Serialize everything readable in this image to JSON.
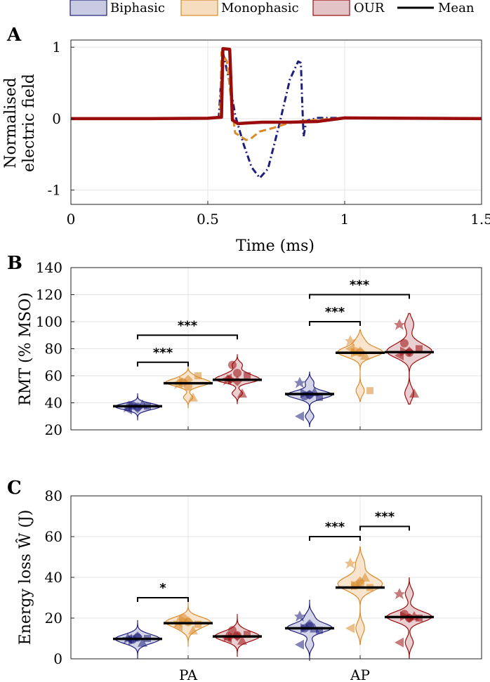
{
  "legend": {
    "entries": [
      {
        "label": "Biphasic",
        "color": "#1f1f7a"
      },
      {
        "label": "Monophasic",
        "color": "#d98b2b"
      },
      {
        "label": "OUR",
        "color": "#9b0d0d"
      },
      {
        "label": "Mean",
        "color": "#000000"
      }
    ]
  },
  "colors": {
    "biphasic": "#1f1f7a",
    "monophasic": "#d98b2b",
    "our": "#9b0d0d",
    "mean": "#000000"
  },
  "chart_data": [
    {
      "panel": "A",
      "type": "line",
      "xlabel": "Time (ms)",
      "ylabel_lines": [
        "Normalised",
        "electric field"
      ],
      "xlim": [
        0,
        1.5
      ],
      "ylim": [
        -1.2,
        1.1
      ],
      "xticks": [
        0,
        0.5,
        1,
        1.5
      ],
      "xtick_labels": [
        "0",
        "0.5",
        "1",
        "1.5"
      ],
      "yticks": [
        -1,
        0,
        1
      ],
      "ytick_labels": [
        "-1",
        "0",
        "1"
      ],
      "series": [
        {
          "name": "Biphasic",
          "x": [
            0,
            0.3,
            0.5,
            0.54,
            0.555,
            0.58,
            0.6,
            0.63,
            0.66,
            0.69,
            0.72,
            0.76,
            0.8,
            0.83,
            0.84,
            0.845,
            0.85,
            0.86,
            0.9,
            1.0,
            1.5
          ],
          "y": [
            0,
            0,
            0.005,
            0.01,
            0.93,
            0.5,
            0.05,
            -0.35,
            -0.68,
            -0.83,
            -0.7,
            -0.1,
            0.55,
            0.8,
            0.78,
            0.2,
            -0.25,
            -0.03,
            0.01,
            0.01,
            0.0
          ]
        },
        {
          "name": "Monophasic",
          "x": [
            0,
            0.3,
            0.5,
            0.545,
            0.55,
            0.57,
            0.59,
            0.6,
            0.62,
            0.64,
            0.66,
            0.69,
            0.74,
            0.78,
            0.8,
            0.85,
            1.0,
            1.5
          ],
          "y": [
            0,
            0,
            0.005,
            0.01,
            0.93,
            0.8,
            0.1,
            -0.2,
            -0.25,
            -0.3,
            -0.27,
            -0.18,
            -0.13,
            -0.08,
            -0.06,
            -0.03,
            0.01,
            0.0
          ]
        },
        {
          "name": "OUR",
          "x": [
            0,
            0.3,
            0.5,
            0.55,
            0.555,
            0.58,
            0.59,
            0.61,
            0.65,
            0.7,
            0.8,
            0.9,
            1.0,
            1.5
          ],
          "y": [
            0,
            0,
            0.005,
            0.02,
            0.98,
            0.97,
            -0.02,
            -0.07,
            -0.06,
            -0.05,
            -0.05,
            -0.04,
            0.01,
            0.0
          ]
        }
      ]
    },
    {
      "panel": "B",
      "type": "violin",
      "ylabel": "RMT (% MSO)",
      "ylim": [
        20,
        140
      ],
      "yticks": [
        20,
        40,
        60,
        80,
        100,
        120,
        140
      ],
      "ytick_labels": [
        "20",
        "40",
        "60",
        "80",
        "100",
        "120",
        "140"
      ],
      "categories": [
        "PA",
        "AP"
      ],
      "series": [
        {
          "name": "Biphasic",
          "means": [
            37.5,
            46.5
          ],
          "points": [
            [
              37,
              38,
              36,
              39,
              37.5,
              35,
              38,
              37
            ],
            [
              55,
              45,
              46,
              48,
              44,
              30,
              47,
              46
            ]
          ]
        },
        {
          "name": "Monophasic",
          "means": [
            54.5,
            77
          ],
          "points": [
            [
              54,
              55,
              57,
              44,
              60,
              55,
              56,
              52
            ],
            [
              86,
              78,
              78,
              75,
              49,
              80,
              77,
              77
            ]
          ]
        },
        {
          "name": "OUR",
          "means": [
            57,
            77.5
          ],
          "points": [
            [
              57,
              68,
              56,
              47,
              60,
              58,
              57,
              62
            ],
            [
              98,
              84,
              78,
              47,
              80,
              75,
              78,
              77
            ]
          ]
        }
      ],
      "significance": [
        {
          "category": "PA",
          "from": "Biphasic",
          "to": "Monophasic",
          "y": 70,
          "label": "***"
        },
        {
          "category": "PA",
          "from": "Biphasic",
          "to": "OUR",
          "y": 90,
          "label": "***"
        },
        {
          "category": "AP",
          "from": "Biphasic",
          "to": "Monophasic",
          "y": 100,
          "label": "***"
        },
        {
          "category": "AP",
          "from": "Biphasic",
          "to": "OUR",
          "y": 120,
          "label": "***"
        }
      ]
    },
    {
      "panel": "C",
      "type": "violin",
      "ylabel": "Energy loss Ŵ (J)",
      "ylim": [
        0,
        80
      ],
      "yticks": [
        0,
        20,
        40,
        60,
        80
      ],
      "ytick_labels": [
        "0",
        "20",
        "40",
        "60",
        "80"
      ],
      "categories": [
        "PA",
        "AP"
      ],
      "xtick_labels": [
        "PA",
        "AP"
      ],
      "series": [
        {
          "name": "Biphasic",
          "means": [
            9.8,
            15
          ],
          "points": [
            [
              10,
              9.5,
              11,
              8,
              10,
              9.8,
              9,
              10.5
            ],
            [
              21,
              15,
              17,
              15,
              14,
              7,
              15,
              16
            ]
          ]
        },
        {
          "name": "Monophasic",
          "means": [
            17.5,
            35
          ],
          "points": [
            [
              18,
              20,
              18.5,
              14,
              17,
              16,
              19,
              18
            ],
            [
              47,
              36,
              38,
              40,
              35,
              15,
              36,
              37
            ]
          ]
        },
        {
          "name": "OUR",
          "means": [
            11,
            20.5
          ],
          "points": [
            [
              11,
              14,
              11,
              9,
              12,
              10,
              11,
              11.5
            ],
            [
              32,
              22,
              20,
              21,
              20,
              8,
              21,
              20
            ]
          ]
        }
      ],
      "significance": [
        {
          "category": "PA",
          "from": "Biphasic",
          "to": "Monophasic",
          "y": 30,
          "label": "*"
        },
        {
          "category": "AP",
          "from": "Biphasic",
          "to": "Monophasic",
          "y": 60,
          "label": "***"
        },
        {
          "category": "AP",
          "from": "Monophasic",
          "to": "OUR",
          "y": 65,
          "label": "***"
        }
      ]
    }
  ],
  "panel_labels": [
    "A",
    "B",
    "C"
  ]
}
